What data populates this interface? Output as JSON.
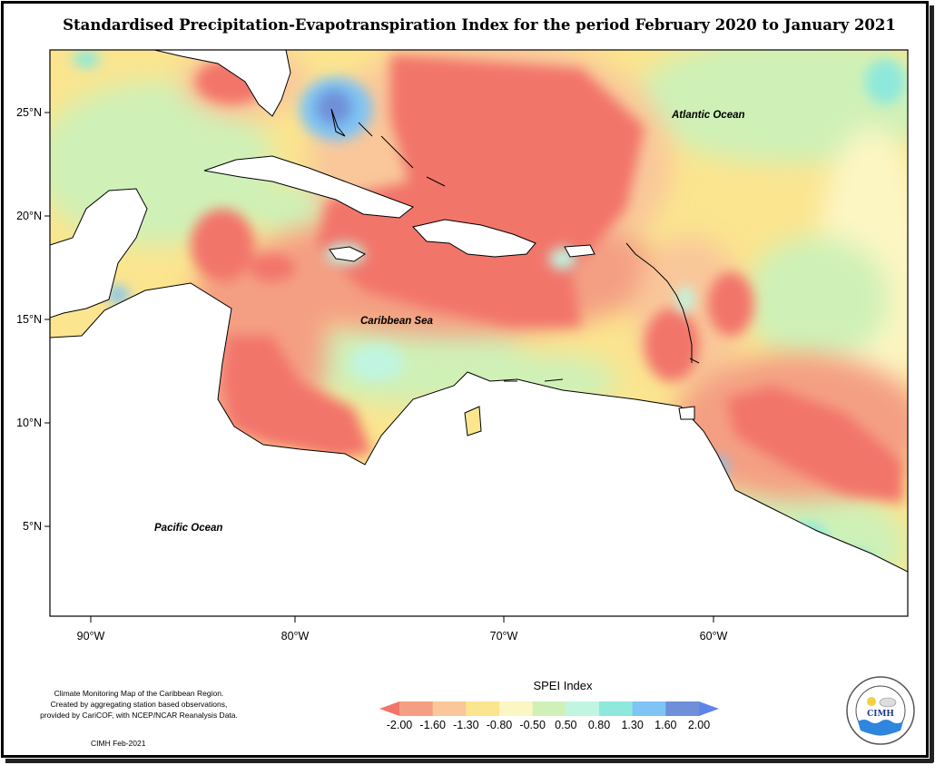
{
  "title": "Standardised Precipitation-Evapotranspiration Index for the period February 2020 to January 2021",
  "map": {
    "region": "Caribbean",
    "lon_range": [
      -92,
      -50
    ],
    "lat_range": [
      0.5,
      28
    ],
    "lat_ticks": [
      "25°N",
      "20°N",
      "15°N",
      "10°N",
      "5°N"
    ],
    "lon_ticks": [
      "90°W",
      "80°W",
      "70°W",
      "60°W"
    ],
    "labels": {
      "atlantic": "Atlantic Ocean",
      "caribbean": "Caribbean Sea",
      "pacific": "Pacific Ocean"
    }
  },
  "legend": {
    "title": "SPEI Index",
    "values": [
      "-2.00",
      "-1.60",
      "-1.30",
      "-0.80",
      "-0.50",
      "0.50",
      "0.80",
      "1.30",
      "1.60",
      "2.00"
    ],
    "colors": [
      "#F2756A",
      "#F49F83",
      "#F9C79A",
      "#FBE58F",
      "#FCF6C3",
      "#CFF1B7",
      "#C0F5E1",
      "#8EE8DB",
      "#7EC4F5",
      "#6F8FD8",
      "#5E84E8"
    ]
  },
  "footnote": [
    "Climate Monitoring Map of the Caribbean Region.",
    "Created by aggregating station based observations,",
    "provided by CariCOF, with NCEP/NCAR Reanalysis Data."
  ],
  "credit": "CIMH Feb-2021",
  "logo": {
    "name": "cimh-logo",
    "text": "CIMH",
    "ring_text": "Caribbean Institute for Meteorology and Hydrology"
  }
}
